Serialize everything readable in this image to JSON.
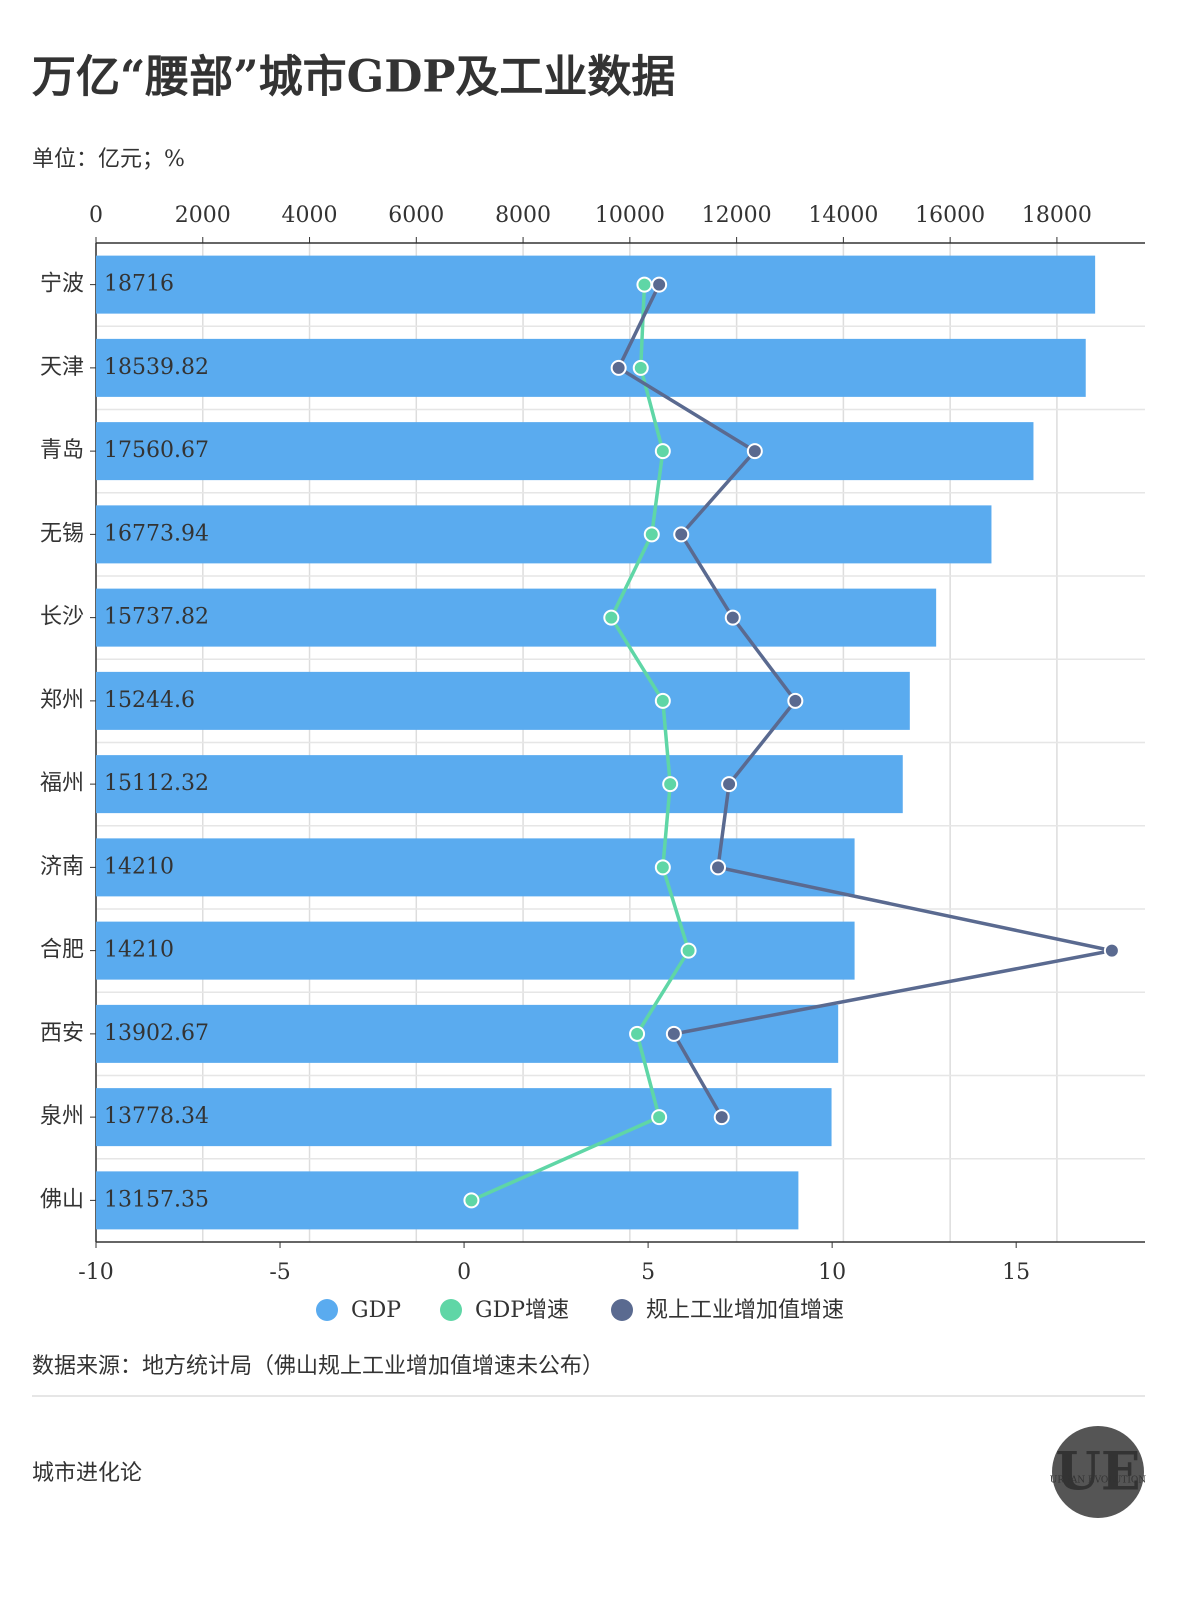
{
  "chart_data": {
    "type": "bar",
    "orientation": "horizontal",
    "title": "万亿“腰部”城市GDP及工业数据",
    "subtitle": "单位：亿元；%",
    "categories": [
      "宁波",
      "天津",
      "青岛",
      "无锡",
      "长沙",
      "郑州",
      "福州",
      "济南",
      "合肥",
      "西安",
      "泉州",
      "佛山"
    ],
    "series": [
      {
        "name": "GDP",
        "type": "bar",
        "color": "#5aabef",
        "axis": "x",
        "values": [
          18716,
          18539.82,
          17560.67,
          16773.94,
          15737.82,
          15244.6,
          15112.32,
          14210,
          14210,
          13902.67,
          13778.34,
          13157.35
        ]
      },
      {
        "name": "GDP增速",
        "type": "line",
        "color": "#5fd6a6",
        "axis": "x2",
        "values": [
          4.9,
          4.8,
          5.4,
          5.1,
          4.0,
          5.4,
          5.6,
          5.4,
          6.1,
          4.7,
          5.3,
          0.2
        ]
      },
      {
        "name": "规上工业增加值增速",
        "type": "line",
        "color": "#5a6a90",
        "axis": "x2",
        "values": [
          5.3,
          4.2,
          7.9,
          5.9,
          7.3,
          9.0,
          7.2,
          6.9,
          17.6,
          5.7,
          7.0,
          null
        ]
      }
    ],
    "xlim": [
      0,
      19650
    ],
    "xticks": [
      0,
      2000,
      4000,
      6000,
      8000,
      10000,
      12000,
      14000,
      16000,
      18000
    ],
    "x2lim": [
      -10,
      18.5
    ],
    "x2ticks": [
      -10,
      -5,
      0,
      5,
      10,
      15
    ],
    "grid": true,
    "legend": "bottom",
    "source": "数据来源：地方统计局（佛山规上工业增加值增速未公布）"
  },
  "footer": {
    "brand": "城市进化论",
    "logo": "UE",
    "logo_text": "URBAN EVOLUTION"
  }
}
